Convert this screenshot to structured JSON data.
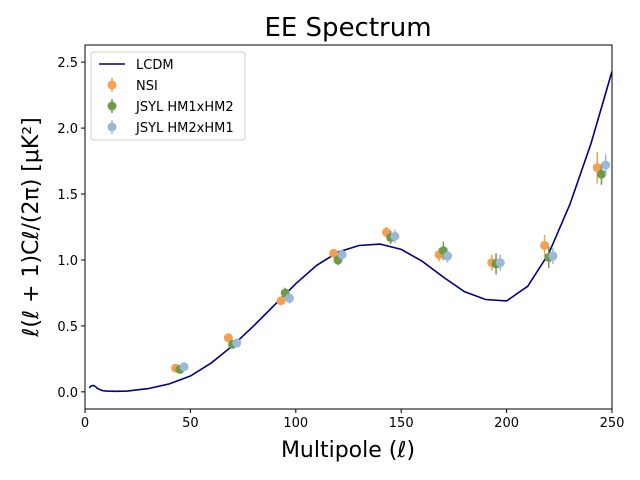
{
  "chart_data": {
    "type": "scatter",
    "title": "EE Spectrum",
    "xlabel": "Multipole (ℓ)",
    "ylabel": "ℓ(ℓ + 1)Cℓ/(2π) [μK²]",
    "xlim": [
      0,
      250
    ],
    "ylim": [
      -0.13,
      2.63
    ],
    "xticks": [
      0,
      50,
      100,
      150,
      200,
      250
    ],
    "yticks": [
      0.0,
      0.5,
      1.0,
      1.5,
      2.0,
      2.5
    ],
    "xtick_labels": [
      "0",
      "50",
      "100",
      "150",
      "200",
      "250"
    ],
    "ytick_labels": [
      "0.0",
      "0.5",
      "1.0",
      "1.5",
      "2.0",
      "2.5"
    ],
    "grid": false,
    "legend_position": "top-left",
    "legend": [
      "LCDM",
      "NSI",
      "JSYL HM1xHM2",
      "JSYL HM2xHM1"
    ],
    "line": {
      "name": "LCDM",
      "color": "#000080",
      "x": [
        2,
        3,
        4,
        5,
        6,
        8,
        10,
        15,
        20,
        30,
        40,
        50,
        60,
        70,
        80,
        90,
        100,
        110,
        120,
        130,
        140,
        150,
        160,
        170,
        180,
        190,
        200,
        210,
        220,
        230,
        240,
        250
      ],
      "y": [
        0.03,
        0.045,
        0.048,
        0.04,
        0.025,
        0.01,
        0.006,
        0.004,
        0.006,
        0.025,
        0.06,
        0.12,
        0.22,
        0.35,
        0.5,
        0.66,
        0.82,
        0.96,
        1.06,
        1.11,
        1.12,
        1.08,
        0.99,
        0.87,
        0.76,
        0.7,
        0.69,
        0.8,
        1.05,
        1.42,
        1.88,
        2.43
      ]
    },
    "series": [
      {
        "name": "NSI",
        "color": "#f5a050",
        "x": [
          43,
          68,
          93,
          118,
          143,
          168,
          193,
          218,
          243
        ],
        "y": [
          0.18,
          0.41,
          0.69,
          1.05,
          1.21,
          1.04,
          0.98,
          1.11,
          1.7
        ],
        "err": [
          0.02,
          0.03,
          0.03,
          0.03,
          0.04,
          0.05,
          0.06,
          0.08,
          0.12
        ]
      },
      {
        "name": "JSYL HM1xHM2",
        "color": "#6f9a4a",
        "x": [
          45,
          70,
          95,
          120,
          145,
          170,
          195,
          220,
          245
        ],
        "y": [
          0.17,
          0.36,
          0.75,
          1.0,
          1.17,
          1.07,
          0.97,
          1.02,
          1.65
        ],
        "err": [
          0.02,
          0.03,
          0.04,
          0.04,
          0.05,
          0.07,
          0.08,
          0.08,
          0.08
        ]
      },
      {
        "name": "JSYL HM2xHM1",
        "color": "#9ab8d8",
        "x": [
          47,
          72,
          97,
          122,
          147,
          172,
          197,
          222,
          247
        ],
        "y": [
          0.19,
          0.37,
          0.71,
          1.04,
          1.18,
          1.03,
          0.98,
          1.03,
          1.72
        ],
        "err": [
          0.02,
          0.03,
          0.04,
          0.04,
          0.05,
          0.05,
          0.06,
          0.06,
          0.08
        ]
      }
    ]
  }
}
